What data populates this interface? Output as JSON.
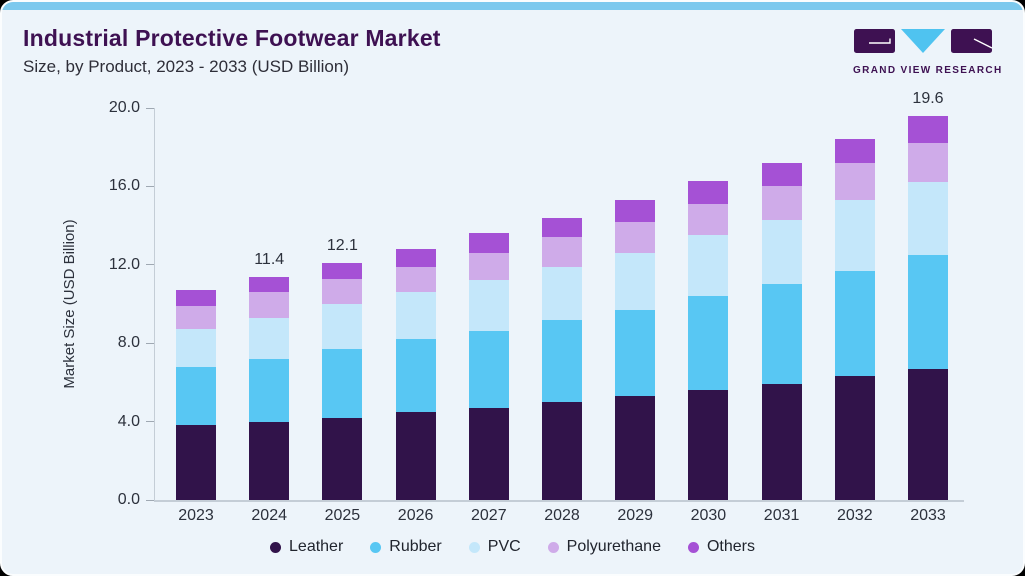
{
  "header": {
    "title": "Industrial Protective Footwear Market",
    "subtitle": "Size, by Product, 2023 - 2033 (USD Billion)"
  },
  "logo": {
    "text": "GRAND VIEW RESEARCH"
  },
  "colors": {
    "accent-bar": "#7cc9ee",
    "card-bg": "#edf4fa",
    "title": "#3e1152",
    "subtitle": "#2e2e38",
    "axis-text": "#2c313c",
    "axis-line": "#c4cdd6",
    "label-text": "#2c313c",
    "logo-purple": "#3e1152",
    "logo-blue": "#4fc3f0"
  },
  "chart_data": {
    "type": "bar",
    "stacked": true,
    "title": "Industrial Protective Footwear Market Size, by Product, 2023 - 2033 (USD Billion)",
    "categories": [
      "2023",
      "2024",
      "2025",
      "2026",
      "2027",
      "2028",
      "2029",
      "2030",
      "2031",
      "2032",
      "2033"
    ],
    "series": [
      {
        "name": "Leather",
        "color": "#31134a",
        "values": [
          3.8,
          4.0,
          4.2,
          4.5,
          4.7,
          5.0,
          5.3,
          5.6,
          5.9,
          6.3,
          6.7
        ]
      },
      {
        "name": "Rubber",
        "color": "#58c7f3",
        "values": [
          3.0,
          3.2,
          3.5,
          3.7,
          3.9,
          4.2,
          4.4,
          4.8,
          5.1,
          5.4,
          5.8
        ]
      },
      {
        "name": "PVC",
        "color": "#c4e7fa",
        "values": [
          1.9,
          2.1,
          2.3,
          2.4,
          2.6,
          2.7,
          2.9,
          3.1,
          3.3,
          3.6,
          3.7
        ]
      },
      {
        "name": "Polyurethane",
        "color": "#cfabe9",
        "values": [
          1.2,
          1.3,
          1.3,
          1.3,
          1.4,
          1.5,
          1.6,
          1.6,
          1.7,
          1.9,
          2.0
        ]
      },
      {
        "name": "Others",
        "color": "#a551d5",
        "values": [
          0.8,
          0.8,
          0.8,
          0.9,
          1.0,
          1.0,
          1.1,
          1.2,
          1.2,
          1.2,
          1.4
        ]
      }
    ],
    "totals": [
      10.7,
      11.4,
      12.1,
      12.8,
      13.6,
      14.4,
      15.3,
      16.3,
      17.2,
      18.4,
      19.6
    ],
    "bar_labels": {
      "2024": "11.4",
      "2025": "12.1",
      "2033": "19.6"
    },
    "ylabel": "Market Size (USD Billion)",
    "ylim": [
      0,
      20
    ],
    "yticks": [
      "0.0",
      "4.0",
      "8.0",
      "12.0",
      "16.0",
      "20.0"
    ],
    "grid": false,
    "legend_position": "bottom"
  }
}
